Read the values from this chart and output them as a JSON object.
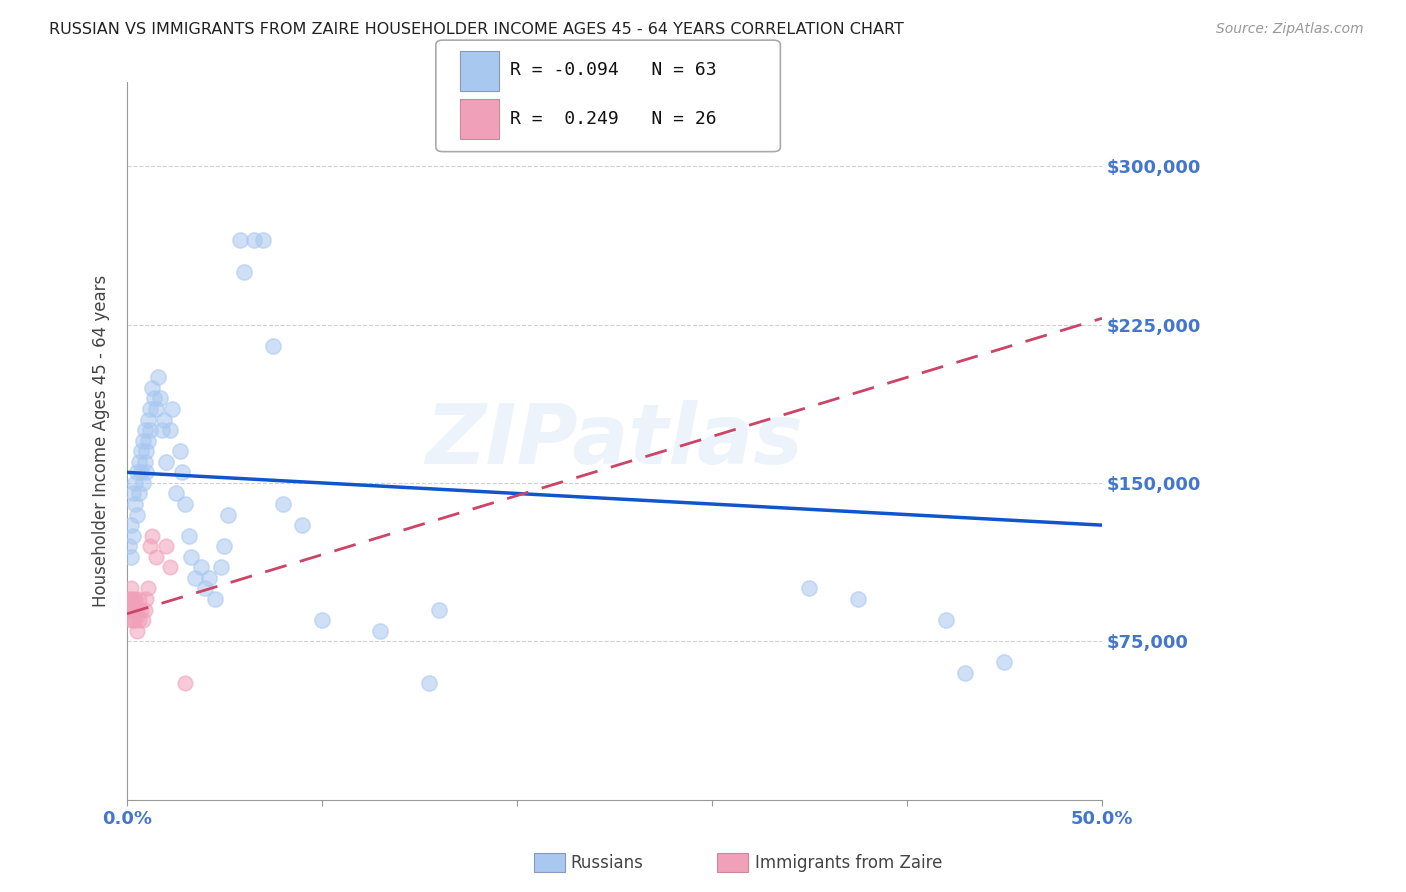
{
  "title": "RUSSIAN VS IMMIGRANTS FROM ZAIRE HOUSEHOLDER INCOME AGES 45 - 64 YEARS CORRELATION CHART",
  "source": "Source: ZipAtlas.com",
  "ylabel": "Householder Income Ages 45 - 64 years",
  "xlim": [
    0.0,
    0.5
  ],
  "ylim": [
    0,
    340000
  ],
  "yticks": [
    75000,
    150000,
    225000,
    300000
  ],
  "ytick_labels": [
    "$75,000",
    "$150,000",
    "$225,000",
    "$300,000"
  ],
  "xticks": [
    0.0,
    0.1,
    0.2,
    0.3,
    0.4,
    0.5
  ],
  "xtick_labels": [
    "0.0%",
    "",
    "",
    "",
    "",
    "50.0%"
  ],
  "background_color": "#ffffff",
  "grid_color": "#d0d0d0",
  "blue_color": "#a8c8f0",
  "pink_color": "#f0a0b8",
  "line_blue": "#1155cc",
  "line_pink": "#cc4466",
  "tick_color": "#4477cc",
  "watermark": "ZIPatlas",
  "legend_R_blue": "-0.094",
  "legend_N_blue": "63",
  "legend_R_pink": "0.249",
  "legend_N_pink": "26",
  "russians_x": [
    0.001,
    0.002,
    0.002,
    0.003,
    0.003,
    0.004,
    0.004,
    0.005,
    0.005,
    0.006,
    0.006,
    0.007,
    0.007,
    0.008,
    0.008,
    0.009,
    0.009,
    0.01,
    0.01,
    0.011,
    0.011,
    0.012,
    0.012,
    0.013,
    0.014,
    0.015,
    0.016,
    0.017,
    0.018,
    0.019,
    0.02,
    0.022,
    0.023,
    0.025,
    0.027,
    0.028,
    0.03,
    0.032,
    0.033,
    0.035,
    0.038,
    0.04,
    0.042,
    0.045,
    0.048,
    0.05,
    0.052,
    0.058,
    0.06,
    0.065,
    0.07,
    0.075,
    0.08,
    0.09,
    0.1,
    0.13,
    0.155,
    0.16,
    0.35,
    0.375,
    0.42,
    0.43,
    0.45
  ],
  "russians_y": [
    120000,
    115000,
    130000,
    145000,
    125000,
    140000,
    150000,
    135000,
    155000,
    145000,
    160000,
    155000,
    165000,
    150000,
    170000,
    160000,
    175000,
    155000,
    165000,
    180000,
    170000,
    185000,
    175000,
    195000,
    190000,
    185000,
    200000,
    190000,
    175000,
    180000,
    160000,
    175000,
    185000,
    145000,
    165000,
    155000,
    140000,
    125000,
    115000,
    105000,
    110000,
    100000,
    105000,
    95000,
    110000,
    120000,
    135000,
    265000,
    250000,
    265000,
    265000,
    215000,
    140000,
    130000,
    85000,
    80000,
    55000,
    90000,
    100000,
    95000,
    85000,
    60000,
    65000
  ],
  "zaire_x": [
    0.001,
    0.001,
    0.002,
    0.002,
    0.002,
    0.003,
    0.003,
    0.003,
    0.004,
    0.004,
    0.004,
    0.005,
    0.005,
    0.006,
    0.006,
    0.007,
    0.008,
    0.009,
    0.01,
    0.011,
    0.012,
    0.013,
    0.015,
    0.02,
    0.022,
    0.03
  ],
  "zaire_y": [
    90000,
    95000,
    100000,
    95000,
    85000,
    95000,
    90000,
    85000,
    95000,
    90000,
    85000,
    90000,
    80000,
    95000,
    85000,
    90000,
    85000,
    90000,
    95000,
    100000,
    120000,
    125000,
    115000,
    120000,
    110000,
    55000
  ]
}
